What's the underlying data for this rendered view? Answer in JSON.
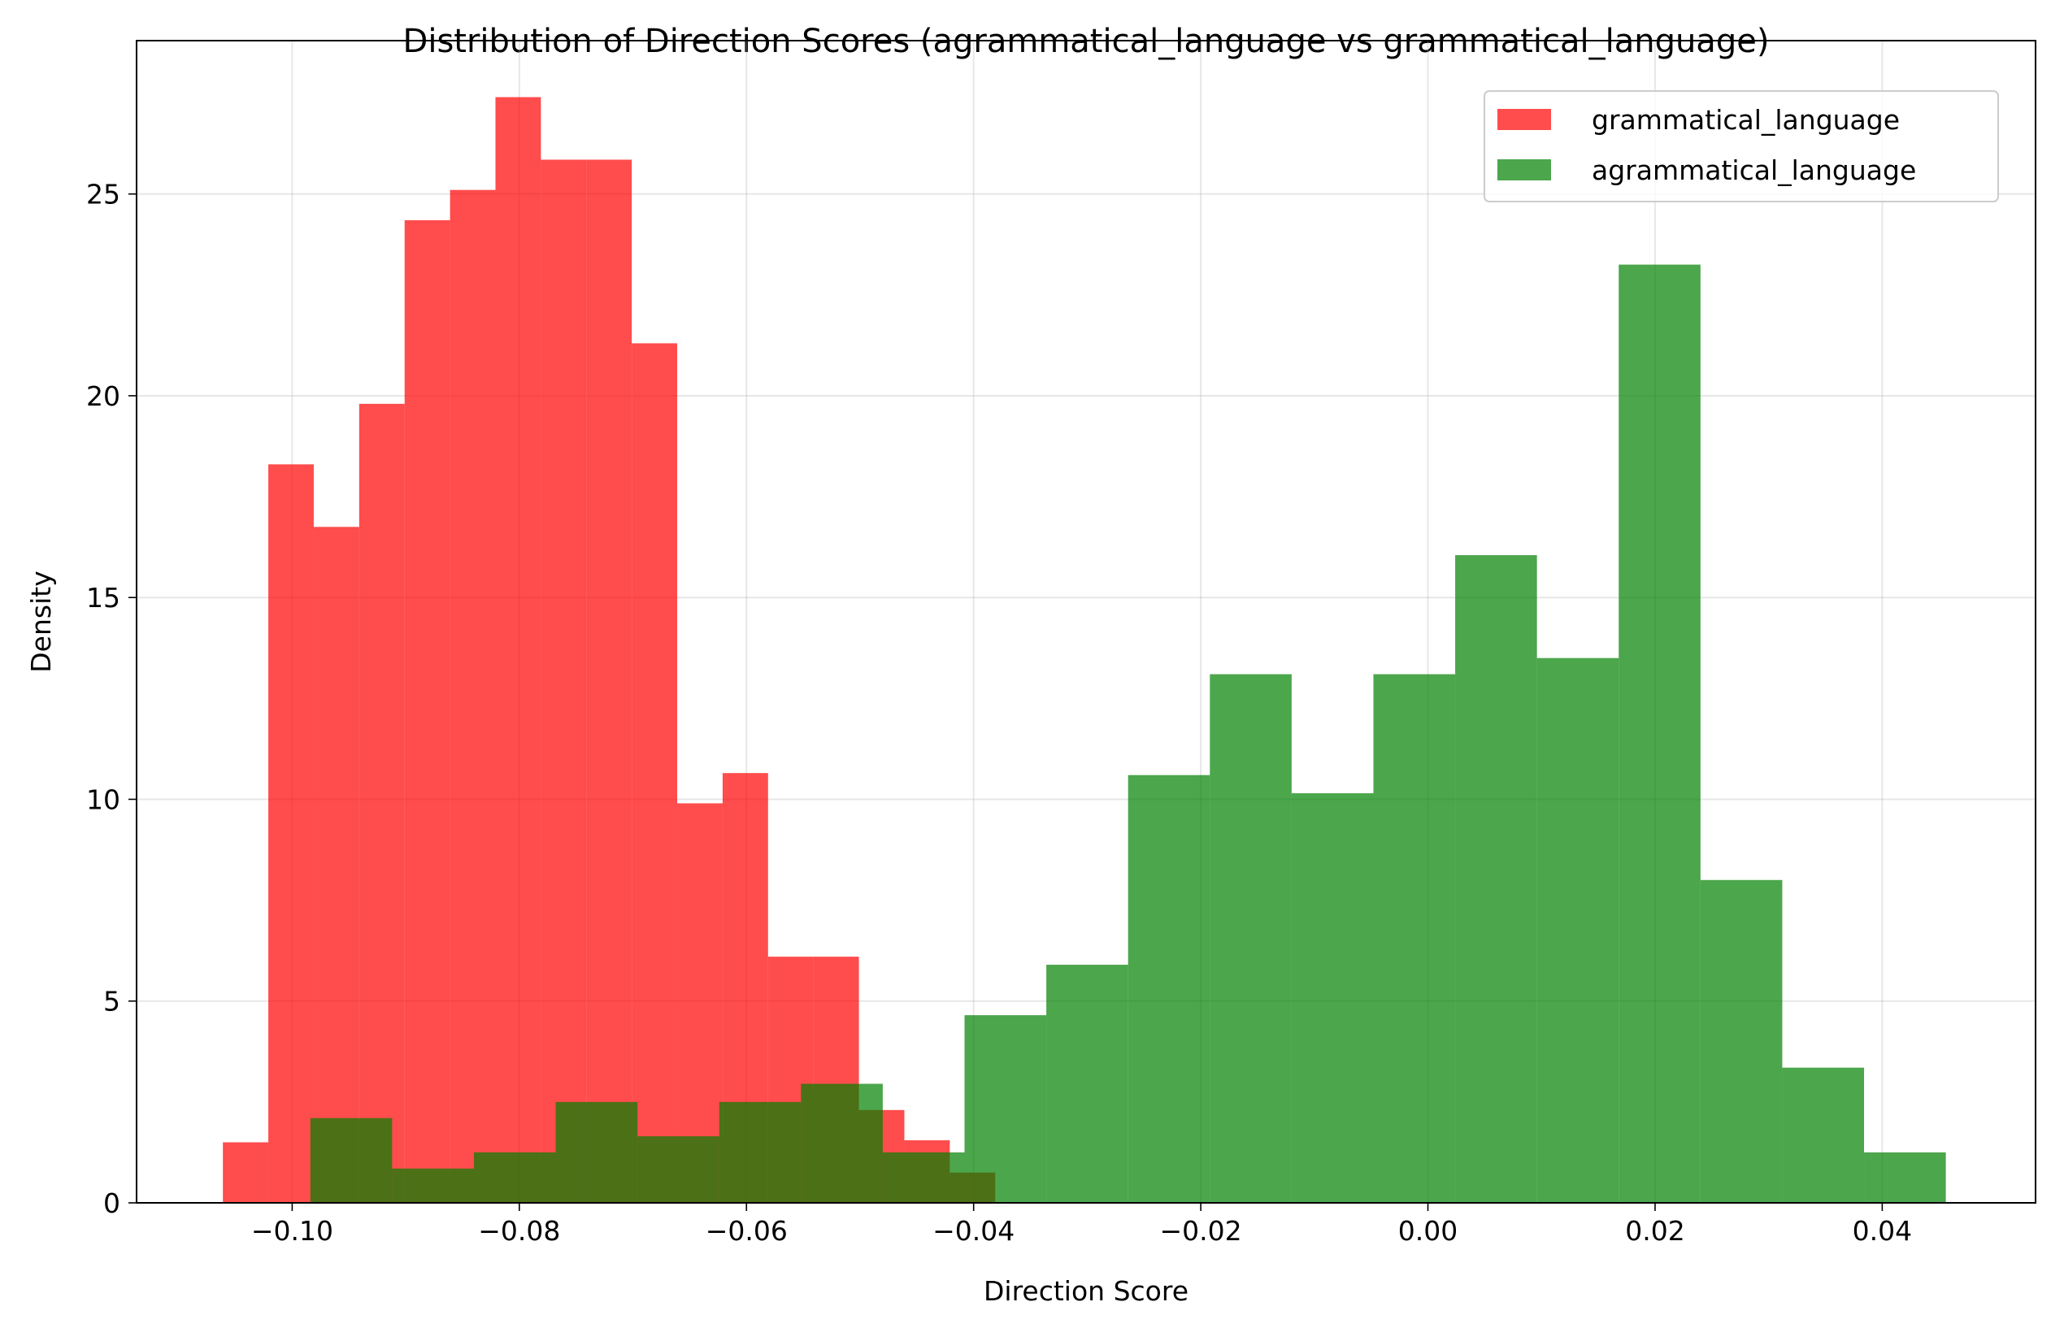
{
  "chart_data": {
    "type": "bar",
    "title": "Distribution of Direction Scores (agrammatical_language vs grammatical_language)",
    "xlabel": "Direction Score",
    "ylabel": "Density",
    "xlim": [
      -0.1137,
      0.0535
    ],
    "ylim": [
      0,
      28.8
    ],
    "xticks": [
      -0.1,
      -0.08,
      -0.06,
      -0.04,
      -0.02,
      0.0,
      0.02,
      0.04
    ],
    "xtick_labels": [
      "−0.10",
      "−0.08",
      "−0.06",
      "−0.04",
      "−0.02",
      "0.00",
      "0.02",
      "0.04"
    ],
    "yticks": [
      0,
      5,
      10,
      15,
      20,
      25
    ],
    "ytick_labels": [
      "0",
      "5",
      "10",
      "15",
      "20",
      "25"
    ],
    "grid": true,
    "legend_position": "top-right",
    "series": [
      {
        "name": "grammatical_language",
        "color": "#ff0000",
        "alpha": 0.7,
        "bin_edges": [
          -0.1061,
          -0.1021,
          -0.0981,
          -0.0941,
          -0.0901,
          -0.0861,
          -0.0821,
          -0.0781,
          -0.0741,
          -0.0701,
          -0.0661,
          -0.0621,
          -0.0581,
          -0.0541,
          -0.0501,
          -0.0461,
          -0.0421,
          -0.0381
        ],
        "values": [
          1.5,
          18.3,
          16.75,
          19.8,
          24.35,
          25.1,
          27.4,
          25.85,
          25.85,
          21.3,
          9.9,
          10.65,
          6.1,
          6.1,
          2.3,
          1.55,
          0.75
        ]
      },
      {
        "name": "agrammatical_language",
        "color": "#008000",
        "alpha": 0.7,
        "bin_edges": [
          -0.0984,
          -0.0912,
          -0.084,
          -0.0768,
          -0.0696,
          -0.0624,
          -0.0552,
          -0.048,
          -0.0408,
          -0.0336,
          -0.0264,
          -0.0192,
          -0.012,
          -0.0048,
          0.0024,
          0.0096,
          0.0168,
          0.024,
          0.0312,
          0.0384,
          0.0456
        ],
        "segments": [
          {
            "x0": -0.0984,
            "x1": -0.0912,
            "y": 2.1
          },
          {
            "x0": -0.0912,
            "x1": -0.084,
            "y": 0.85
          },
          {
            "x0": -0.084,
            "x1": -0.0768,
            "y": 1.25
          },
          {
            "x0": -0.0768,
            "x1": -0.0696,
            "y": 2.5
          },
          {
            "x0": -0.0696,
            "x1": -0.0624,
            "y": 1.65
          },
          {
            "x0": -0.0624,
            "x1": -0.0552,
            "y": 2.5
          },
          {
            "x0": -0.0552,
            "x1": -0.048,
            "y": 2.95
          },
          {
            "x0": -0.048,
            "x1": -0.0408,
            "y": 1.25
          },
          {
            "x0": -0.0408,
            "x1": -0.0336,
            "y": 4.65
          },
          {
            "x0": -0.0336,
            "x1": -0.0264,
            "y": 5.9
          },
          {
            "x0": -0.0264,
            "x1": -0.0192,
            "y": 10.6
          },
          {
            "x0": -0.0192,
            "x1": -0.012,
            "y": 13.1
          },
          {
            "x0": -0.012,
            "x1": -0.0048,
            "y": 10.15
          },
          {
            "x0": -0.0048,
            "x1": 0.0024,
            "y": 13.1
          },
          {
            "x0": 0.0024,
            "x1": 0.0096,
            "y": 16.05
          },
          {
            "x0": 0.0096,
            "x1": 0.0168,
            "y": 13.5
          },
          {
            "x0": 0.0168,
            "x1": 0.024,
            "y": 23.25
          },
          {
            "x0": 0.024,
            "x1": 0.0312,
            "y": 8.0
          },
          {
            "x0": 0.0312,
            "x1": 0.0384,
            "y": 3.35
          },
          {
            "x0": 0.0384,
            "x1": 0.0456,
            "y": 1.25
          }
        ]
      }
    ]
  }
}
